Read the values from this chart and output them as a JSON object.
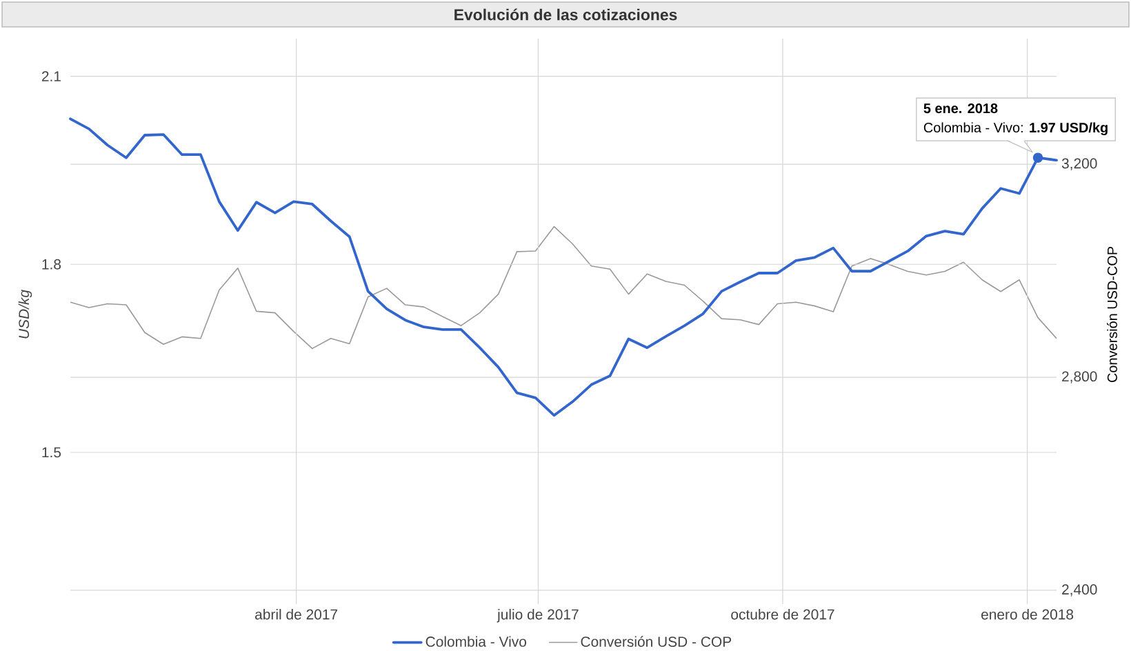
{
  "chart_data": {
    "type": "line",
    "title": "Evolución de las cotizaciones",
    "ylabel": "USD/kg",
    "y2label": "Conversión USD-COP",
    "x": [
      "2017-01-06",
      "2017-01-13",
      "2017-01-20",
      "2017-01-27",
      "2017-02-03",
      "2017-02-10",
      "2017-02-17",
      "2017-02-24",
      "2017-03-03",
      "2017-03-10",
      "2017-03-17",
      "2017-03-24",
      "2017-03-31",
      "2017-04-07",
      "2017-04-14",
      "2017-04-21",
      "2017-04-28",
      "2017-05-05",
      "2017-05-12",
      "2017-05-19",
      "2017-05-26",
      "2017-06-02",
      "2017-06-09",
      "2017-06-16",
      "2017-06-23",
      "2017-06-30",
      "2017-07-07",
      "2017-07-14",
      "2017-07-21",
      "2017-07-28",
      "2017-08-04",
      "2017-08-11",
      "2017-08-18",
      "2017-08-25",
      "2017-09-01",
      "2017-09-08",
      "2017-09-15",
      "2017-09-22",
      "2017-09-29",
      "2017-10-06",
      "2017-10-13",
      "2017-10-20",
      "2017-10-27",
      "2017-11-03",
      "2017-11-10",
      "2017-11-17",
      "2017-11-24",
      "2017-12-01",
      "2017-12-08",
      "2017-12-15",
      "2017-12-22",
      "2017-12-29",
      "2018-01-05",
      "2018-01-12"
    ],
    "series": [
      {
        "name": "Colombia - Vivo",
        "color": "#3366cc",
        "values": [
          2.032,
          2.016,
          1.99,
          1.97,
          2.006,
          2.007,
          1.975,
          1.975,
          1.9,
          1.854,
          1.899,
          1.882,
          1.9,
          1.896,
          1.869,
          1.844,
          1.757,
          1.729,
          1.711,
          1.7,
          1.696,
          1.696,
          1.667,
          1.636,
          1.595,
          1.587,
          1.559,
          1.581,
          1.608,
          1.622,
          1.681,
          1.667,
          1.685,
          1.702,
          1.721,
          1.757,
          1.772,
          1.786,
          1.786,
          1.806,
          1.811,
          1.826,
          1.789,
          1.789,
          1.805,
          1.821,
          1.845,
          1.853,
          1.848,
          1.889,
          1.921,
          1.913,
          1.97,
          1.966
        ]
      },
      {
        "name": "Conversión USD - COP",
        "color": "#999999",
        "axis": "y2",
        "values": [
          2941,
          2931,
          2938,
          2936,
          2884,
          2862,
          2876,
          2873,
          2964,
          3005,
          2924,
          2921,
          2886,
          2854,
          2873,
          2863,
          2951,
          2967,
          2936,
          2932,
          2914,
          2897,
          2921,
          2956,
          3036,
          3037,
          3083,
          3050,
          3009,
          3003,
          2956,
          2994,
          2980,
          2973,
          2943,
          2910,
          2908,
          2899,
          2938,
          2941,
          2934,
          2923,
          3009,
          3023,
          3012,
          2999,
          2992,
          2999,
          3016,
          2983,
          2961,
          2983,
          2912,
          2873
        ]
      }
    ],
    "xlim": [
      "2017-01-06",
      "2018-01-12"
    ],
    "xticks": [
      {
        "value": "2017-04-01",
        "label": "abril de 2017"
      },
      {
        "value": "2017-07-01",
        "label": "julio de 2017"
      },
      {
        "value": "2017-10-01",
        "label": "octubre de 2017"
      },
      {
        "value": "2018-01-01",
        "label": "enero de 2018"
      }
    ],
    "ylim": [
      1.28,
      2.16
    ],
    "yticks": [
      1.5,
      1.8,
      2.1
    ],
    "y2lim": [
      2400,
      3436
    ],
    "y2ticks": [
      {
        "value": 2400,
        "label": "2,400"
      },
      {
        "value": 2800,
        "label": "2,800"
      },
      {
        "value": 3200,
        "label": "3,200"
      }
    ],
    "annotations": [
      "5 ene. 2018",
      {
        "text": "Colombia - Vivo: **1.97 USD/kg**",
        "x": "2018-01-05",
        "y": 1.97
      }
    ],
    "grid": true,
    "legend": "bottom"
  }
}
